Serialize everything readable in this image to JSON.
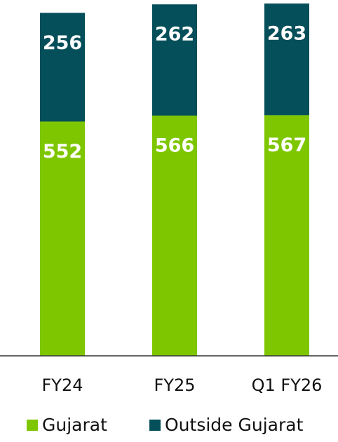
{
  "chart_data": {
    "type": "stacked_bar",
    "categories": [
      "FY24",
      "FY25",
      "Q1 FY26"
    ],
    "series": [
      {
        "name": "Gujarat",
        "color": "#7ec600",
        "values": [
          552,
          566,
          567
        ]
      },
      {
        "name": "Outside Gujarat",
        "color": "#054f5a",
        "values": [
          256,
          262,
          263
        ]
      }
    ],
    "ylim": [
      0,
      830
    ]
  }
}
